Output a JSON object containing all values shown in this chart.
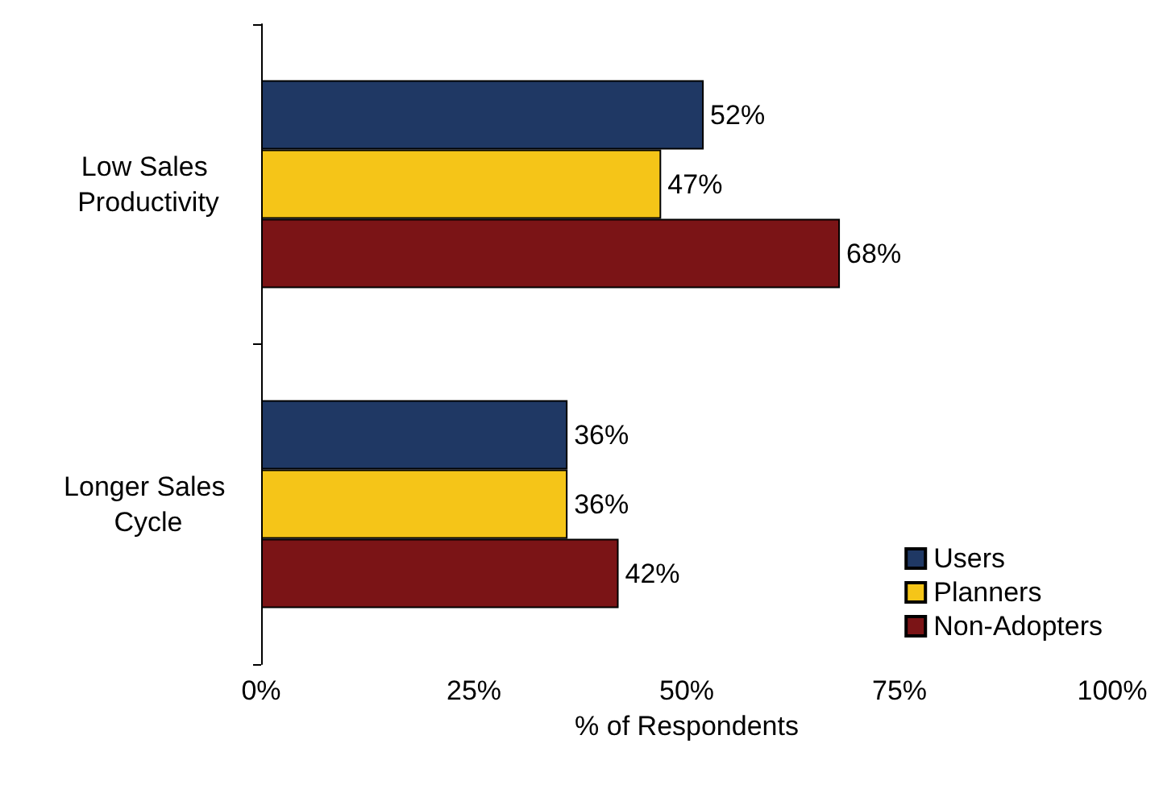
{
  "chart_data": {
    "type": "bar",
    "orientation": "horizontal",
    "categories": [
      "Low Sales Productivity",
      "Longer Sales Cycle"
    ],
    "series": [
      {
        "name": "Users",
        "color": "#1f3864",
        "values": [
          52,
          36
        ],
        "value_labels": [
          "52%",
          "36%"
        ]
      },
      {
        "name": "Planners",
        "color": "#f5c518",
        "values": [
          47,
          36
        ],
        "value_labels": [
          "47%",
          "36%"
        ]
      },
      {
        "name": "Non-Adopters",
        "color": "#7b1416",
        "values": [
          68,
          42
        ],
        "value_labels": [
          "68%",
          "42%"
        ]
      }
    ],
    "xlabel": "% of Respondents",
    "xlim": [
      0,
      100
    ],
    "xticks": [
      {
        "value": 0,
        "label": "0%"
      },
      {
        "value": 25,
        "label": "25%"
      },
      {
        "value": 50,
        "label": "50%"
      },
      {
        "value": 75,
        "label": "75%"
      },
      {
        "value": 100,
        "label": "100%"
      }
    ],
    "grid": false,
    "legend": "bottom right"
  }
}
